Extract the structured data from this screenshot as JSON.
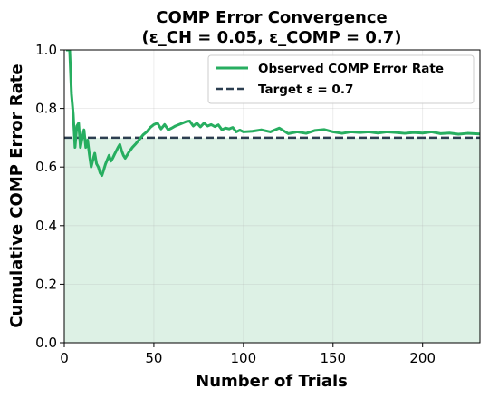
{
  "chart_data": {
    "type": "line",
    "title": "COMP Error Convergence",
    "subtitle": "(ε_CH = 0.05, ε_COMP = 0.7)",
    "xlabel": "Number of Trials",
    "ylabel": "Cumulative COMP Error Rate",
    "xlim": [
      0,
      232
    ],
    "ylim": [
      0,
      1.0
    ],
    "xticks": [
      0,
      50,
      100,
      150,
      200
    ],
    "yticks": [
      0.0,
      0.2,
      0.4,
      0.6,
      0.8,
      1.0
    ],
    "xtick_labels": [
      "0",
      "50",
      "100",
      "150",
      "200"
    ],
    "ytick_labels": [
      "0.0",
      "0.2",
      "0.4",
      "0.6",
      "0.8",
      "1.0"
    ],
    "grid": true,
    "legend_position": "top-right",
    "colors": {
      "observed": "#27ae60",
      "target": "#2c3e50",
      "fill": "#ddf1e5"
    },
    "series": [
      {
        "name": "Observed COMP Error Rate",
        "style": "solid",
        "x": [
          1,
          2,
          3,
          4,
          5,
          6,
          7,
          8,
          9,
          10,
          11,
          12,
          13,
          14,
          15,
          16,
          17,
          18,
          19,
          20,
          21,
          22,
          23,
          24,
          25,
          26,
          27,
          28,
          29,
          30,
          31,
          32,
          33,
          34,
          35,
          36,
          38,
          40,
          42,
          44,
          46,
          48,
          50,
          52,
          54,
          56,
          58,
          60,
          62,
          64,
          66,
          68,
          70,
          72,
          74,
          76,
          78,
          80,
          82,
          84,
          86,
          88,
          90,
          92,
          94,
          96,
          98,
          100,
          105,
          110,
          115,
          120,
          125,
          130,
          135,
          140,
          145,
          150,
          155,
          160,
          165,
          170,
          175,
          180,
          185,
          190,
          195,
          200,
          205,
          210,
          215,
          220,
          225,
          232
        ],
        "values": [
          1.0,
          1.0,
          1.0,
          0.85,
          0.78,
          0.667,
          0.74,
          0.75,
          0.667,
          0.7,
          0.727,
          0.667,
          0.692,
          0.643,
          0.6,
          0.625,
          0.647,
          0.611,
          0.6,
          0.58,
          0.571,
          0.59,
          0.61,
          0.625,
          0.64,
          0.62,
          0.63,
          0.643,
          0.655,
          0.667,
          0.677,
          0.656,
          0.64,
          0.63,
          0.64,
          0.65,
          0.667,
          0.68,
          0.695,
          0.71,
          0.72,
          0.735,
          0.745,
          0.75,
          0.73,
          0.745,
          0.727,
          0.733,
          0.74,
          0.745,
          0.75,
          0.755,
          0.757,
          0.74,
          0.75,
          0.737,
          0.75,
          0.74,
          0.745,
          0.738,
          0.744,
          0.727,
          0.733,
          0.73,
          0.735,
          0.72,
          0.726,
          0.72,
          0.722,
          0.727,
          0.72,
          0.733,
          0.714,
          0.72,
          0.715,
          0.725,
          0.728,
          0.72,
          0.715,
          0.72,
          0.718,
          0.72,
          0.716,
          0.72,
          0.718,
          0.715,
          0.718,
          0.716,
          0.72,
          0.714,
          0.716,
          0.712,
          0.715,
          0.713
        ]
      },
      {
        "name": "Target ε = 0.7",
        "style": "dashed",
        "x": [
          0,
          232
        ],
        "values": [
          0.7,
          0.7
        ]
      }
    ]
  }
}
